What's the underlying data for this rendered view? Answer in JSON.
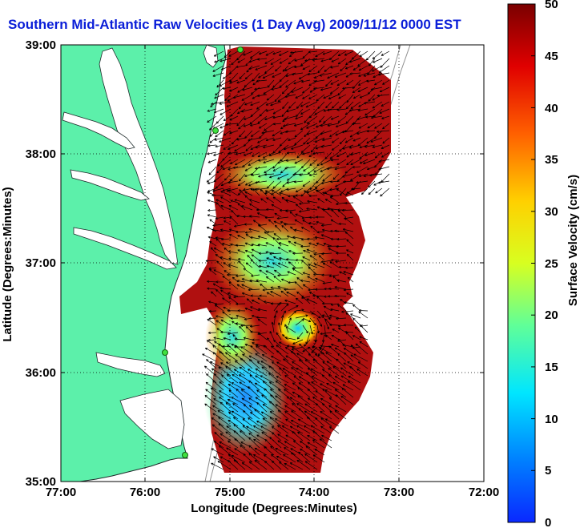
{
  "title": "Southern Mid-Atlantic Raw Velocities (1 Day Avg) 2009/11/12 0000 EST",
  "map": {
    "xlabel": "Longitude (Degrees:Minutes)",
    "ylabel": "Latitude (Degrees:Minutes)",
    "x_ticks": [
      "77:00",
      "76:00",
      "75:00",
      "74:00",
      "73:00",
      "72:00"
    ],
    "y_ticks": [
      "39:00",
      "38:00",
      "37:00",
      "36:00",
      "35:00"
    ],
    "grid": true,
    "land_color": "#5cf0aa",
    "coast_color": "#1e2a2a"
  },
  "colorbar": {
    "label": "Surface Velocity (cm/s)",
    "ticks": [
      "50",
      "45",
      "40",
      "35",
      "30",
      "25",
      "20",
      "15",
      "10",
      "5",
      "0"
    ],
    "min": 0,
    "max": 50,
    "colormap": "jet"
  }
}
